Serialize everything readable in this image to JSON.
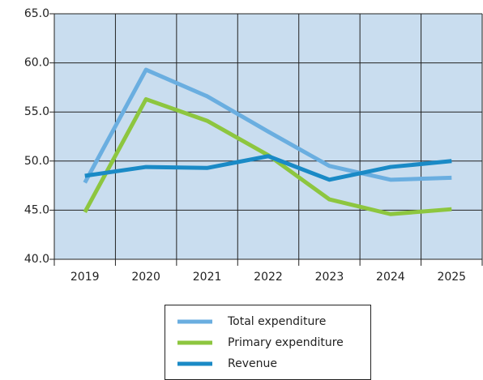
{
  "chart_data": {
    "type": "line",
    "categories": [
      "2019",
      "2020",
      "2021",
      "2022",
      "2023",
      "2024",
      "2025"
    ],
    "series": [
      {
        "name": "Total expenditure",
        "color": "#6aaee0",
        "values": [
          47.8,
          59.3,
          56.6,
          53.0,
          49.5,
          48.1,
          48.3
        ]
      },
      {
        "name": "Primary expenditure",
        "color": "#8dc63f",
        "values": [
          44.8,
          56.3,
          54.1,
          50.6,
          46.1,
          44.6,
          45.1
        ]
      },
      {
        "name": "Revenue",
        "color": "#1a8ac6",
        "values": [
          48.5,
          49.4,
          49.3,
          50.5,
          48.1,
          49.4,
          50.0
        ]
      }
    ],
    "ylim": [
      40,
      65
    ],
    "yticks": [
      {
        "value": 40,
        "label": "40.0"
      },
      {
        "value": 45,
        "label": "45.0"
      },
      {
        "value": 50,
        "label": "50.0"
      },
      {
        "value": 55,
        "label": "55.0"
      },
      {
        "value": 60,
        "label": "60.0"
      },
      {
        "value": 65,
        "label": "65.0"
      }
    ],
    "grid": true
  }
}
